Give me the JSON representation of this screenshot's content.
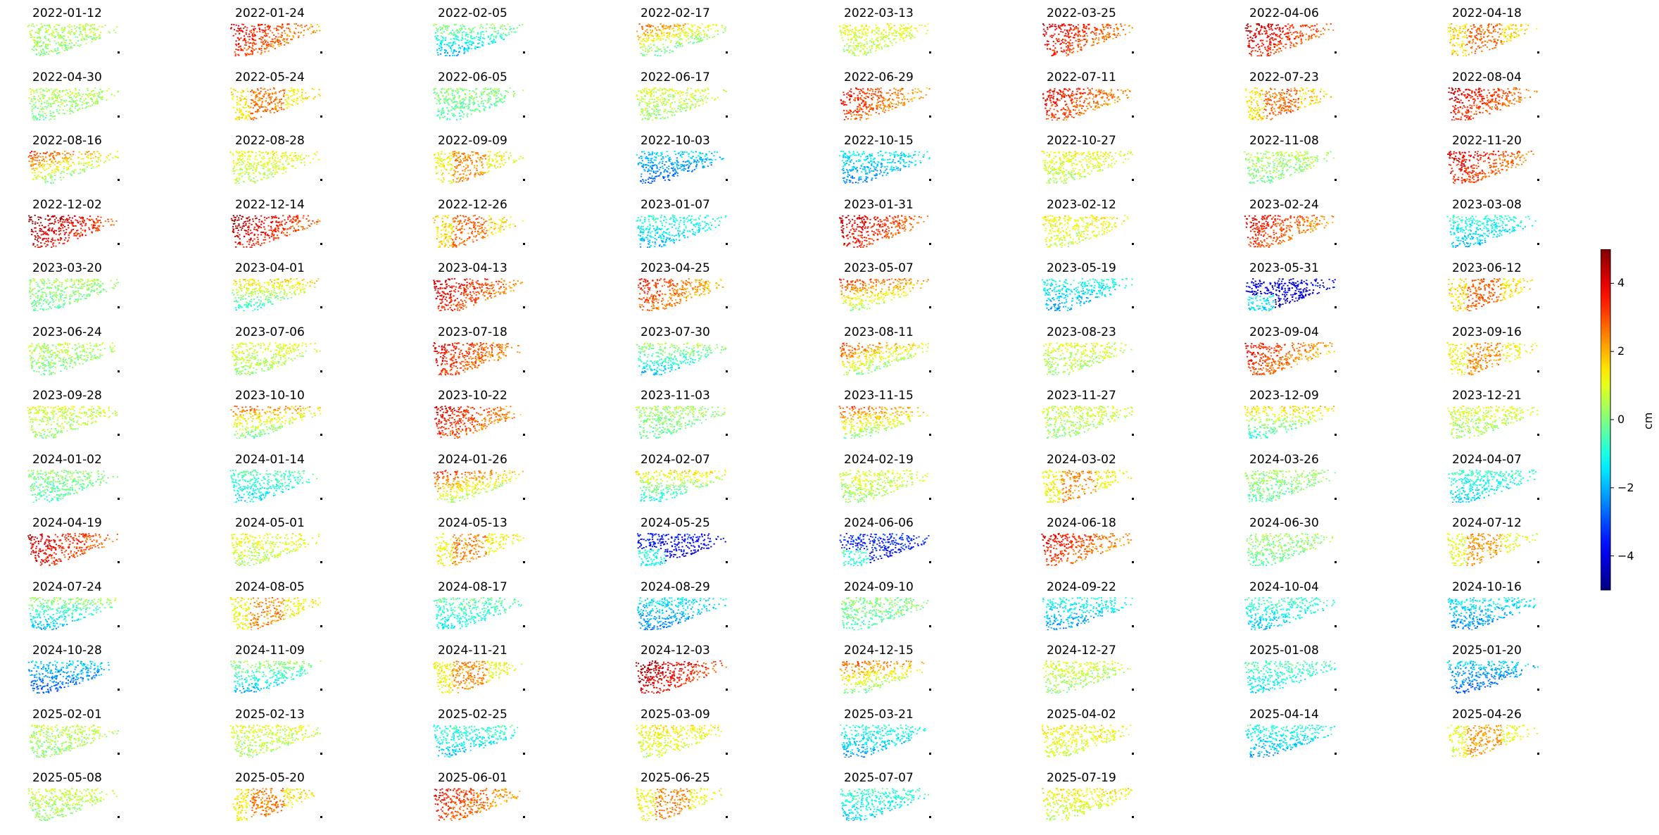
{
  "chart_data": {
    "type": "heatmap",
    "colormap": "jet",
    "panels": [
      {
        "date": "2022-01-12",
        "pattern": "green-yellow",
        "mean": 0.3
      },
      {
        "date": "2022-01-24",
        "pattern": "red-west",
        "mean": 2.0
      },
      {
        "date": "2022-02-05",
        "pattern": "green-blue-south",
        "mean": -0.5
      },
      {
        "date": "2022-02-17",
        "pattern": "red-west-blue-south",
        "mean": 0.8
      },
      {
        "date": "2022-03-13",
        "pattern": "yellow-green",
        "mean": 0.8
      },
      {
        "date": "2022-03-25",
        "pattern": "red-west",
        "mean": 2.2
      },
      {
        "date": "2022-04-06",
        "pattern": "red-west",
        "mean": 2.4
      },
      {
        "date": "2022-04-18",
        "pattern": "orange-yellow",
        "mean": 2.0
      },
      {
        "date": "2022-04-30",
        "pattern": "green",
        "mean": 0.2
      },
      {
        "date": "2022-05-24",
        "pattern": "orange-yellow",
        "mean": 1.8
      },
      {
        "date": "2022-06-05",
        "pattern": "green-cyan",
        "mean": -0.2
      },
      {
        "date": "2022-06-17",
        "pattern": "green-yellow",
        "mean": 0.5
      },
      {
        "date": "2022-06-29",
        "pattern": "red-west",
        "mean": 1.8
      },
      {
        "date": "2022-07-11",
        "pattern": "red-west",
        "mean": 2.0
      },
      {
        "date": "2022-07-23",
        "pattern": "orange-yellow",
        "mean": 2.0
      },
      {
        "date": "2022-08-04",
        "pattern": "red-west",
        "mean": 2.2
      },
      {
        "date": "2022-08-16",
        "pattern": "red-west-blue-south",
        "mean": 1.2
      },
      {
        "date": "2022-08-28",
        "pattern": "green-yellow",
        "mean": 0.8
      },
      {
        "date": "2022-09-09",
        "pattern": "orange-yellow",
        "mean": 1.6
      },
      {
        "date": "2022-10-03",
        "pattern": "blue-cyan",
        "mean": -2.0
      },
      {
        "date": "2022-10-15",
        "pattern": "blue-cyan",
        "mean": -1.6
      },
      {
        "date": "2022-10-27",
        "pattern": "yellow-green",
        "mean": 0.8
      },
      {
        "date": "2022-11-08",
        "pattern": "green-cyan",
        "mean": 0.2
      },
      {
        "date": "2022-11-20",
        "pattern": "red-west",
        "mean": 2.2
      },
      {
        "date": "2022-12-02",
        "pattern": "red-west",
        "mean": 2.8
      },
      {
        "date": "2022-12-14",
        "pattern": "red-west",
        "mean": 2.6
      },
      {
        "date": "2022-12-26",
        "pattern": "orange-yellow",
        "mean": 2.0
      },
      {
        "date": "2023-01-07",
        "pattern": "cyan-blue",
        "mean": -1.2
      },
      {
        "date": "2023-01-31",
        "pattern": "red-west",
        "mean": 2.4
      },
      {
        "date": "2023-02-12",
        "pattern": "yellow-green",
        "mean": 1.0
      },
      {
        "date": "2023-02-24",
        "pattern": "red-west",
        "mean": 2.0
      },
      {
        "date": "2023-03-08",
        "pattern": "cyan-blue",
        "mean": -1.2
      },
      {
        "date": "2023-03-20",
        "pattern": "green-cyan",
        "mean": 0.0
      },
      {
        "date": "2023-04-01",
        "pattern": "yellow-blue-south",
        "mean": 0.8
      },
      {
        "date": "2023-04-13",
        "pattern": "red-west",
        "mean": 2.2
      },
      {
        "date": "2023-04-25",
        "pattern": "red-west",
        "mean": 1.6
      },
      {
        "date": "2023-05-07",
        "pattern": "orange-blue-south",
        "mean": 1.5
      },
      {
        "date": "2023-05-19",
        "pattern": "cyan-blue",
        "mean": -1.4
      },
      {
        "date": "2023-05-31",
        "pattern": "deep-blue",
        "mean": -3.8
      },
      {
        "date": "2023-06-12",
        "pattern": "orange-yellow",
        "mean": 2.0
      },
      {
        "date": "2023-06-24",
        "pattern": "green-cyan",
        "mean": 0.2
      },
      {
        "date": "2023-07-06",
        "pattern": "green-yellow",
        "mean": 0.6
      },
      {
        "date": "2023-07-18",
        "pattern": "red-west",
        "mean": 2.0
      },
      {
        "date": "2023-07-30",
        "pattern": "green-blue-south",
        "mean": -0.2
      },
      {
        "date": "2023-08-11",
        "pattern": "red-west-blue-south",
        "mean": 1.2
      },
      {
        "date": "2023-08-23",
        "pattern": "green-yellow",
        "mean": 0.6
      },
      {
        "date": "2023-09-04",
        "pattern": "red-west",
        "mean": 1.8
      },
      {
        "date": "2023-09-16",
        "pattern": "orange-yellow",
        "mean": 1.6
      },
      {
        "date": "2023-09-28",
        "pattern": "green-yellow",
        "mean": 0.5
      },
      {
        "date": "2023-10-10",
        "pattern": "orange-blue-south",
        "mean": 1.0
      },
      {
        "date": "2023-10-22",
        "pattern": "red-west",
        "mean": 2.0
      },
      {
        "date": "2023-11-03",
        "pattern": "green-cyan",
        "mean": 0.0
      },
      {
        "date": "2023-11-15",
        "pattern": "orange-blue-south",
        "mean": 1.2
      },
      {
        "date": "2023-11-27",
        "pattern": "green-yellow",
        "mean": 0.5
      },
      {
        "date": "2023-12-09",
        "pattern": "yellow-blue-south",
        "mean": 0.8
      },
      {
        "date": "2023-12-21",
        "pattern": "green-yellow",
        "mean": 0.6
      },
      {
        "date": "2024-01-02",
        "pattern": "green-cyan",
        "mean": -0.2
      },
      {
        "date": "2024-01-14",
        "pattern": "cyan-blue",
        "mean": -0.8
      },
      {
        "date": "2024-01-26",
        "pattern": "red-west-blue-south",
        "mean": 1.4
      },
      {
        "date": "2024-02-07",
        "pattern": "yellow-blue-south",
        "mean": 0.6
      },
      {
        "date": "2024-02-19",
        "pattern": "green-yellow",
        "mean": 0.6
      },
      {
        "date": "2024-03-02",
        "pattern": "orange-yellow",
        "mean": 1.6
      },
      {
        "date": "2024-03-26",
        "pattern": "green-cyan",
        "mean": 0.0
      },
      {
        "date": "2024-04-07",
        "pattern": "cyan-blue",
        "mean": -1.0
      },
      {
        "date": "2024-04-19",
        "pattern": "red-west",
        "mean": 2.4
      },
      {
        "date": "2024-05-01",
        "pattern": "yellow-green",
        "mean": 0.8
      },
      {
        "date": "2024-05-13",
        "pattern": "orange-yellow",
        "mean": 1.6
      },
      {
        "date": "2024-05-25",
        "pattern": "deep-blue",
        "mean": -3.5
      },
      {
        "date": "2024-06-06",
        "pattern": "deep-blue",
        "mean": -3.2
      },
      {
        "date": "2024-06-18",
        "pattern": "red-west",
        "mean": 2.0
      },
      {
        "date": "2024-06-30",
        "pattern": "green-cyan",
        "mean": 0.0
      },
      {
        "date": "2024-07-12",
        "pattern": "orange-yellow",
        "mean": 1.4
      },
      {
        "date": "2024-07-24",
        "pattern": "green-blue-south",
        "mean": -0.4
      },
      {
        "date": "2024-08-05",
        "pattern": "orange-yellow",
        "mean": 1.6
      },
      {
        "date": "2024-08-17",
        "pattern": "cyan-blue",
        "mean": -0.6
      },
      {
        "date": "2024-08-29",
        "pattern": "blue-cyan",
        "mean": -1.6
      },
      {
        "date": "2024-09-10",
        "pattern": "green-cyan",
        "mean": -0.2
      },
      {
        "date": "2024-09-22",
        "pattern": "blue-cyan",
        "mean": -1.4
      },
      {
        "date": "2024-10-04",
        "pattern": "cyan-blue",
        "mean": -1.0
      },
      {
        "date": "2024-10-16",
        "pattern": "blue-cyan",
        "mean": -1.6
      },
      {
        "date": "2024-10-28",
        "pattern": "blue-cyan",
        "mean": -2.0
      },
      {
        "date": "2024-11-09",
        "pattern": "green-blue-south",
        "mean": -0.4
      },
      {
        "date": "2024-11-21",
        "pattern": "orange-yellow",
        "mean": 1.6
      },
      {
        "date": "2024-12-03",
        "pattern": "red-west",
        "mean": 2.8
      },
      {
        "date": "2024-12-15",
        "pattern": "orange-blue-south",
        "mean": 1.2
      },
      {
        "date": "2024-12-27",
        "pattern": "green-yellow",
        "mean": 0.5
      },
      {
        "date": "2025-01-08",
        "pattern": "cyan-blue",
        "mean": -0.8
      },
      {
        "date": "2025-01-20",
        "pattern": "blue-cyan",
        "mean": -2.0
      },
      {
        "date": "2025-02-01",
        "pattern": "green",
        "mean": 0.4
      },
      {
        "date": "2025-02-13",
        "pattern": "green",
        "mean": 0.6
      },
      {
        "date": "2025-02-25",
        "pattern": "cyan-blue",
        "mean": -1.0
      },
      {
        "date": "2025-03-09",
        "pattern": "yellow-green",
        "mean": 1.0
      },
      {
        "date": "2025-03-21",
        "pattern": "blue-cyan",
        "mean": -1.2
      },
      {
        "date": "2025-04-02",
        "pattern": "yellow-green",
        "mean": 1.0
      },
      {
        "date": "2025-04-14",
        "pattern": "blue-cyan",
        "mean": -1.2
      },
      {
        "date": "2025-04-26",
        "pattern": "orange-yellow",
        "mean": 1.4
      },
      {
        "date": "2025-05-08",
        "pattern": "green-yellow",
        "mean": 0.5
      },
      {
        "date": "2025-05-20",
        "pattern": "orange-yellow",
        "mean": 1.8
      },
      {
        "date": "2025-06-01",
        "pattern": "red-west",
        "mean": 1.8
      },
      {
        "date": "2025-06-25",
        "pattern": "orange-yellow",
        "mean": 1.6
      },
      {
        "date": "2025-07-07",
        "pattern": "cyan-blue",
        "mean": -1.0
      },
      {
        "date": "2025-07-19",
        "pattern": "yellow-green",
        "mean": 1.0
      }
    ],
    "colorbar": {
      "label": "cm",
      "vmin": -5,
      "vmax": 5,
      "ticks": [
        {
          "value": 4,
          "label": "4"
        },
        {
          "value": 2,
          "label": "2"
        },
        {
          "value": 0,
          "label": "0"
        },
        {
          "value": -2,
          "label": "−2"
        },
        {
          "value": -4,
          "label": "−4"
        }
      ]
    },
    "grid": false,
    "axes_visible": false
  }
}
